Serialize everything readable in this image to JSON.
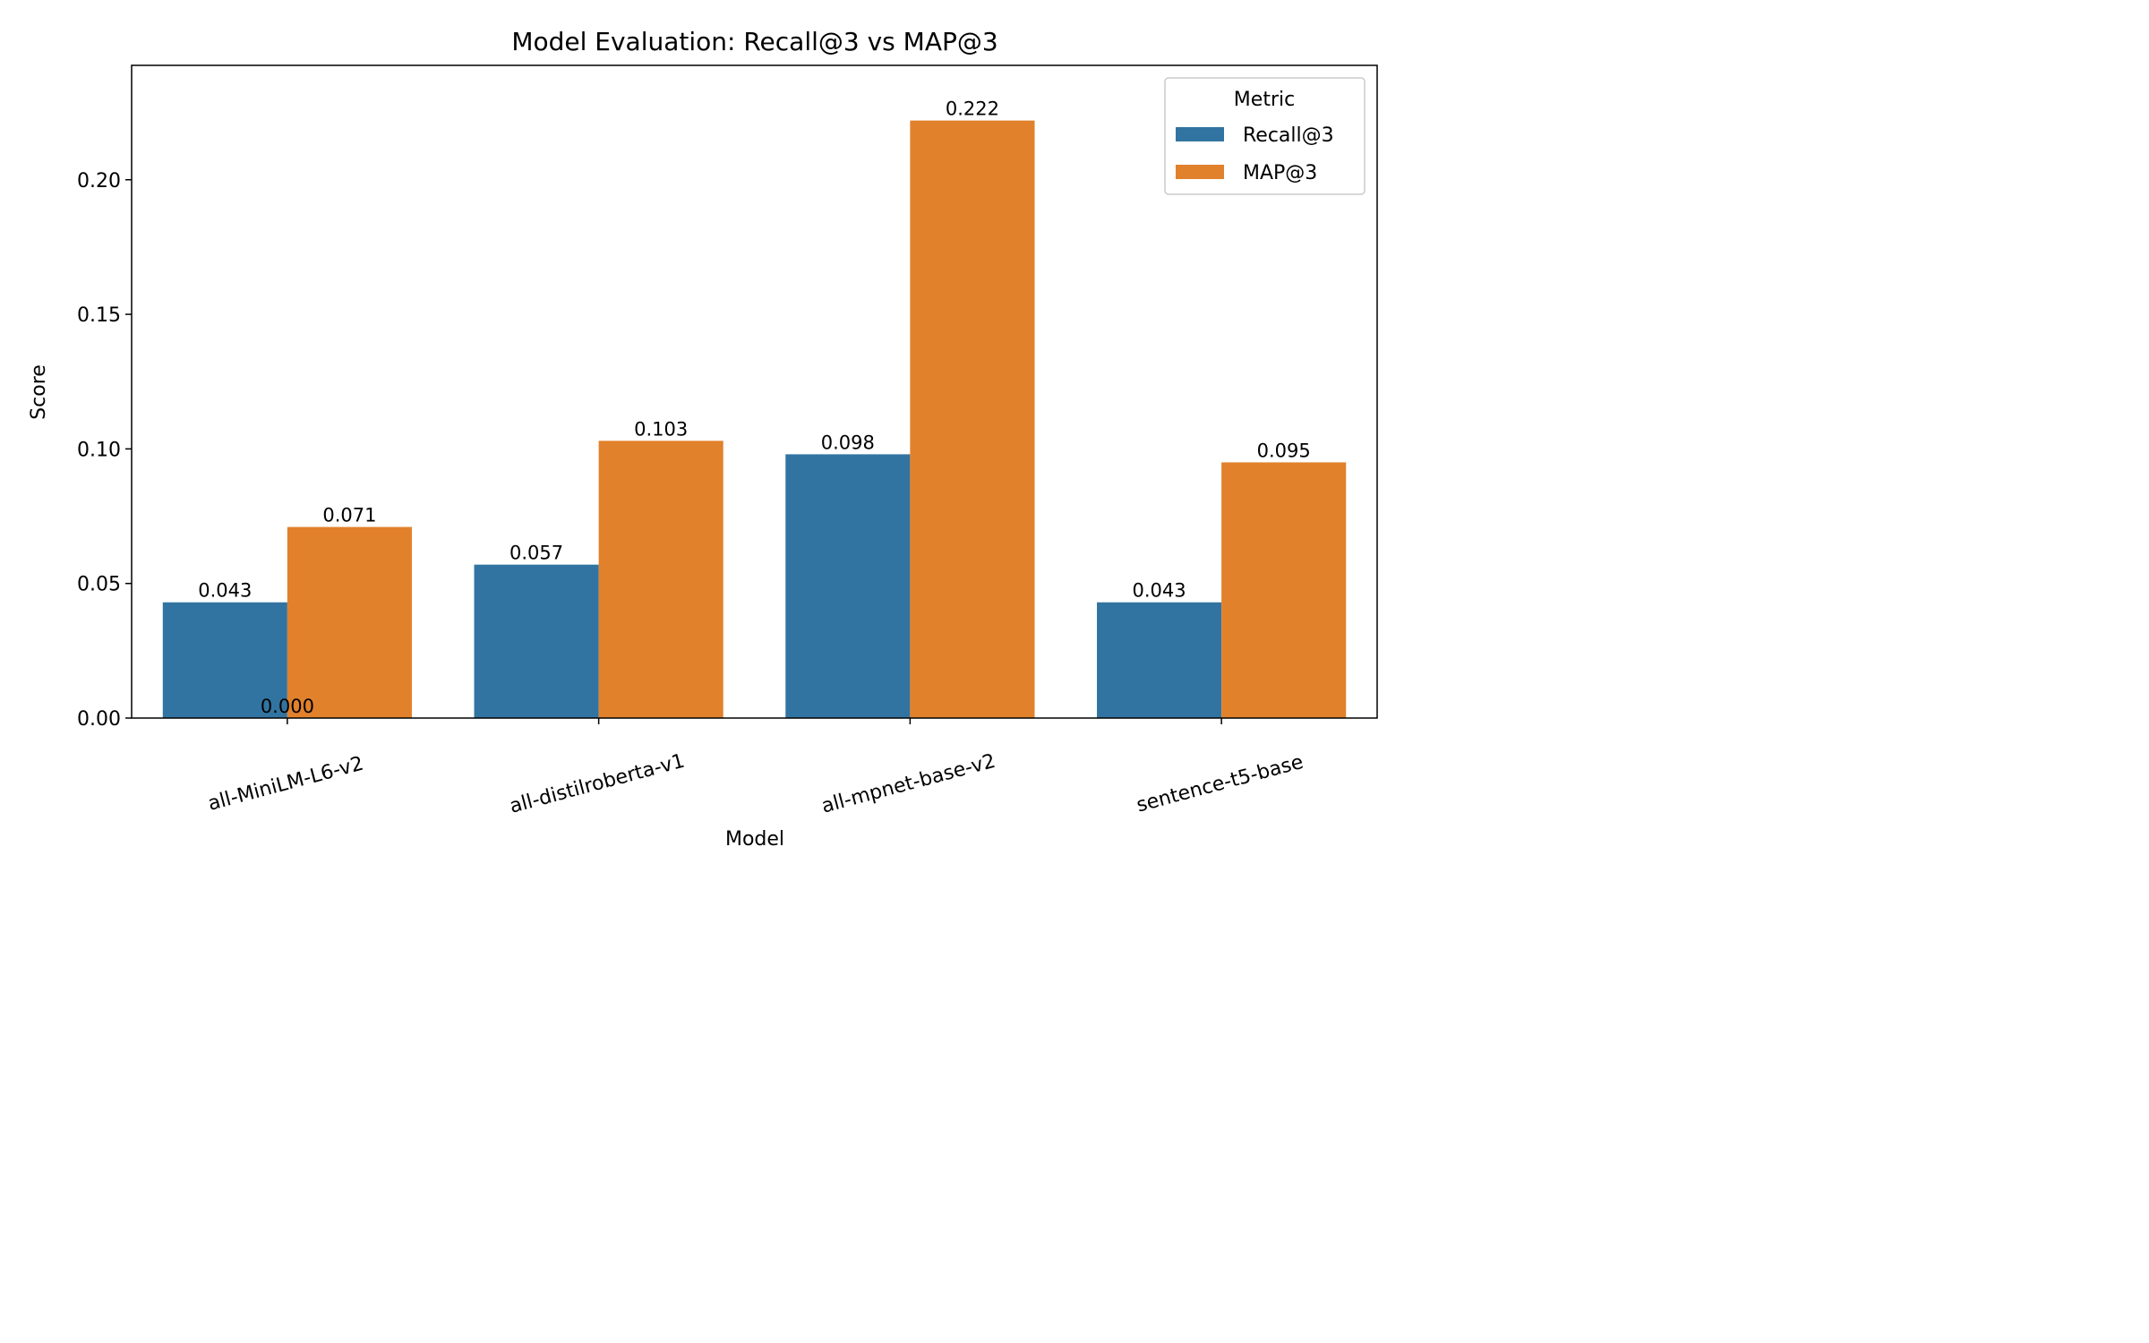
{
  "chart_data": {
    "type": "bar",
    "title": "Model Evaluation: Recall@3 vs MAP@3",
    "xlabel": "Model",
    "ylabel": "Score",
    "categories": [
      "all-MiniLM-L6-v2",
      "all-distilroberta-v1",
      "all-mpnet-base-v2",
      "sentence-t5-base"
    ],
    "series": [
      {
        "name": "Recall@3",
        "color": "#3274a1",
        "values": [
          0.043,
          0.057,
          0.098,
          0.043
        ],
        "labels": [
          "0.043",
          "0.057",
          "0.098",
          "0.043"
        ]
      },
      {
        "name": "MAP@3",
        "color": "#e1812c",
        "values": [
          0.071,
          0.103,
          0.222,
          0.095
        ],
        "labels": [
          "0.071",
          "0.103",
          "0.222",
          "0.095"
        ]
      }
    ],
    "ylim": [
      0,
      0.2425
    ],
    "yticks": [
      0.0,
      0.05,
      0.1,
      0.15,
      0.2
    ],
    "ytick_labels": [
      "0.00",
      "0.05",
      "0.10",
      "0.15",
      "0.20"
    ],
    "extra_annotation": {
      "text": "0.000",
      "category_index": 0,
      "value": 0
    },
    "legend": {
      "title": "Metric",
      "position": "top-right"
    },
    "grid": false
  }
}
